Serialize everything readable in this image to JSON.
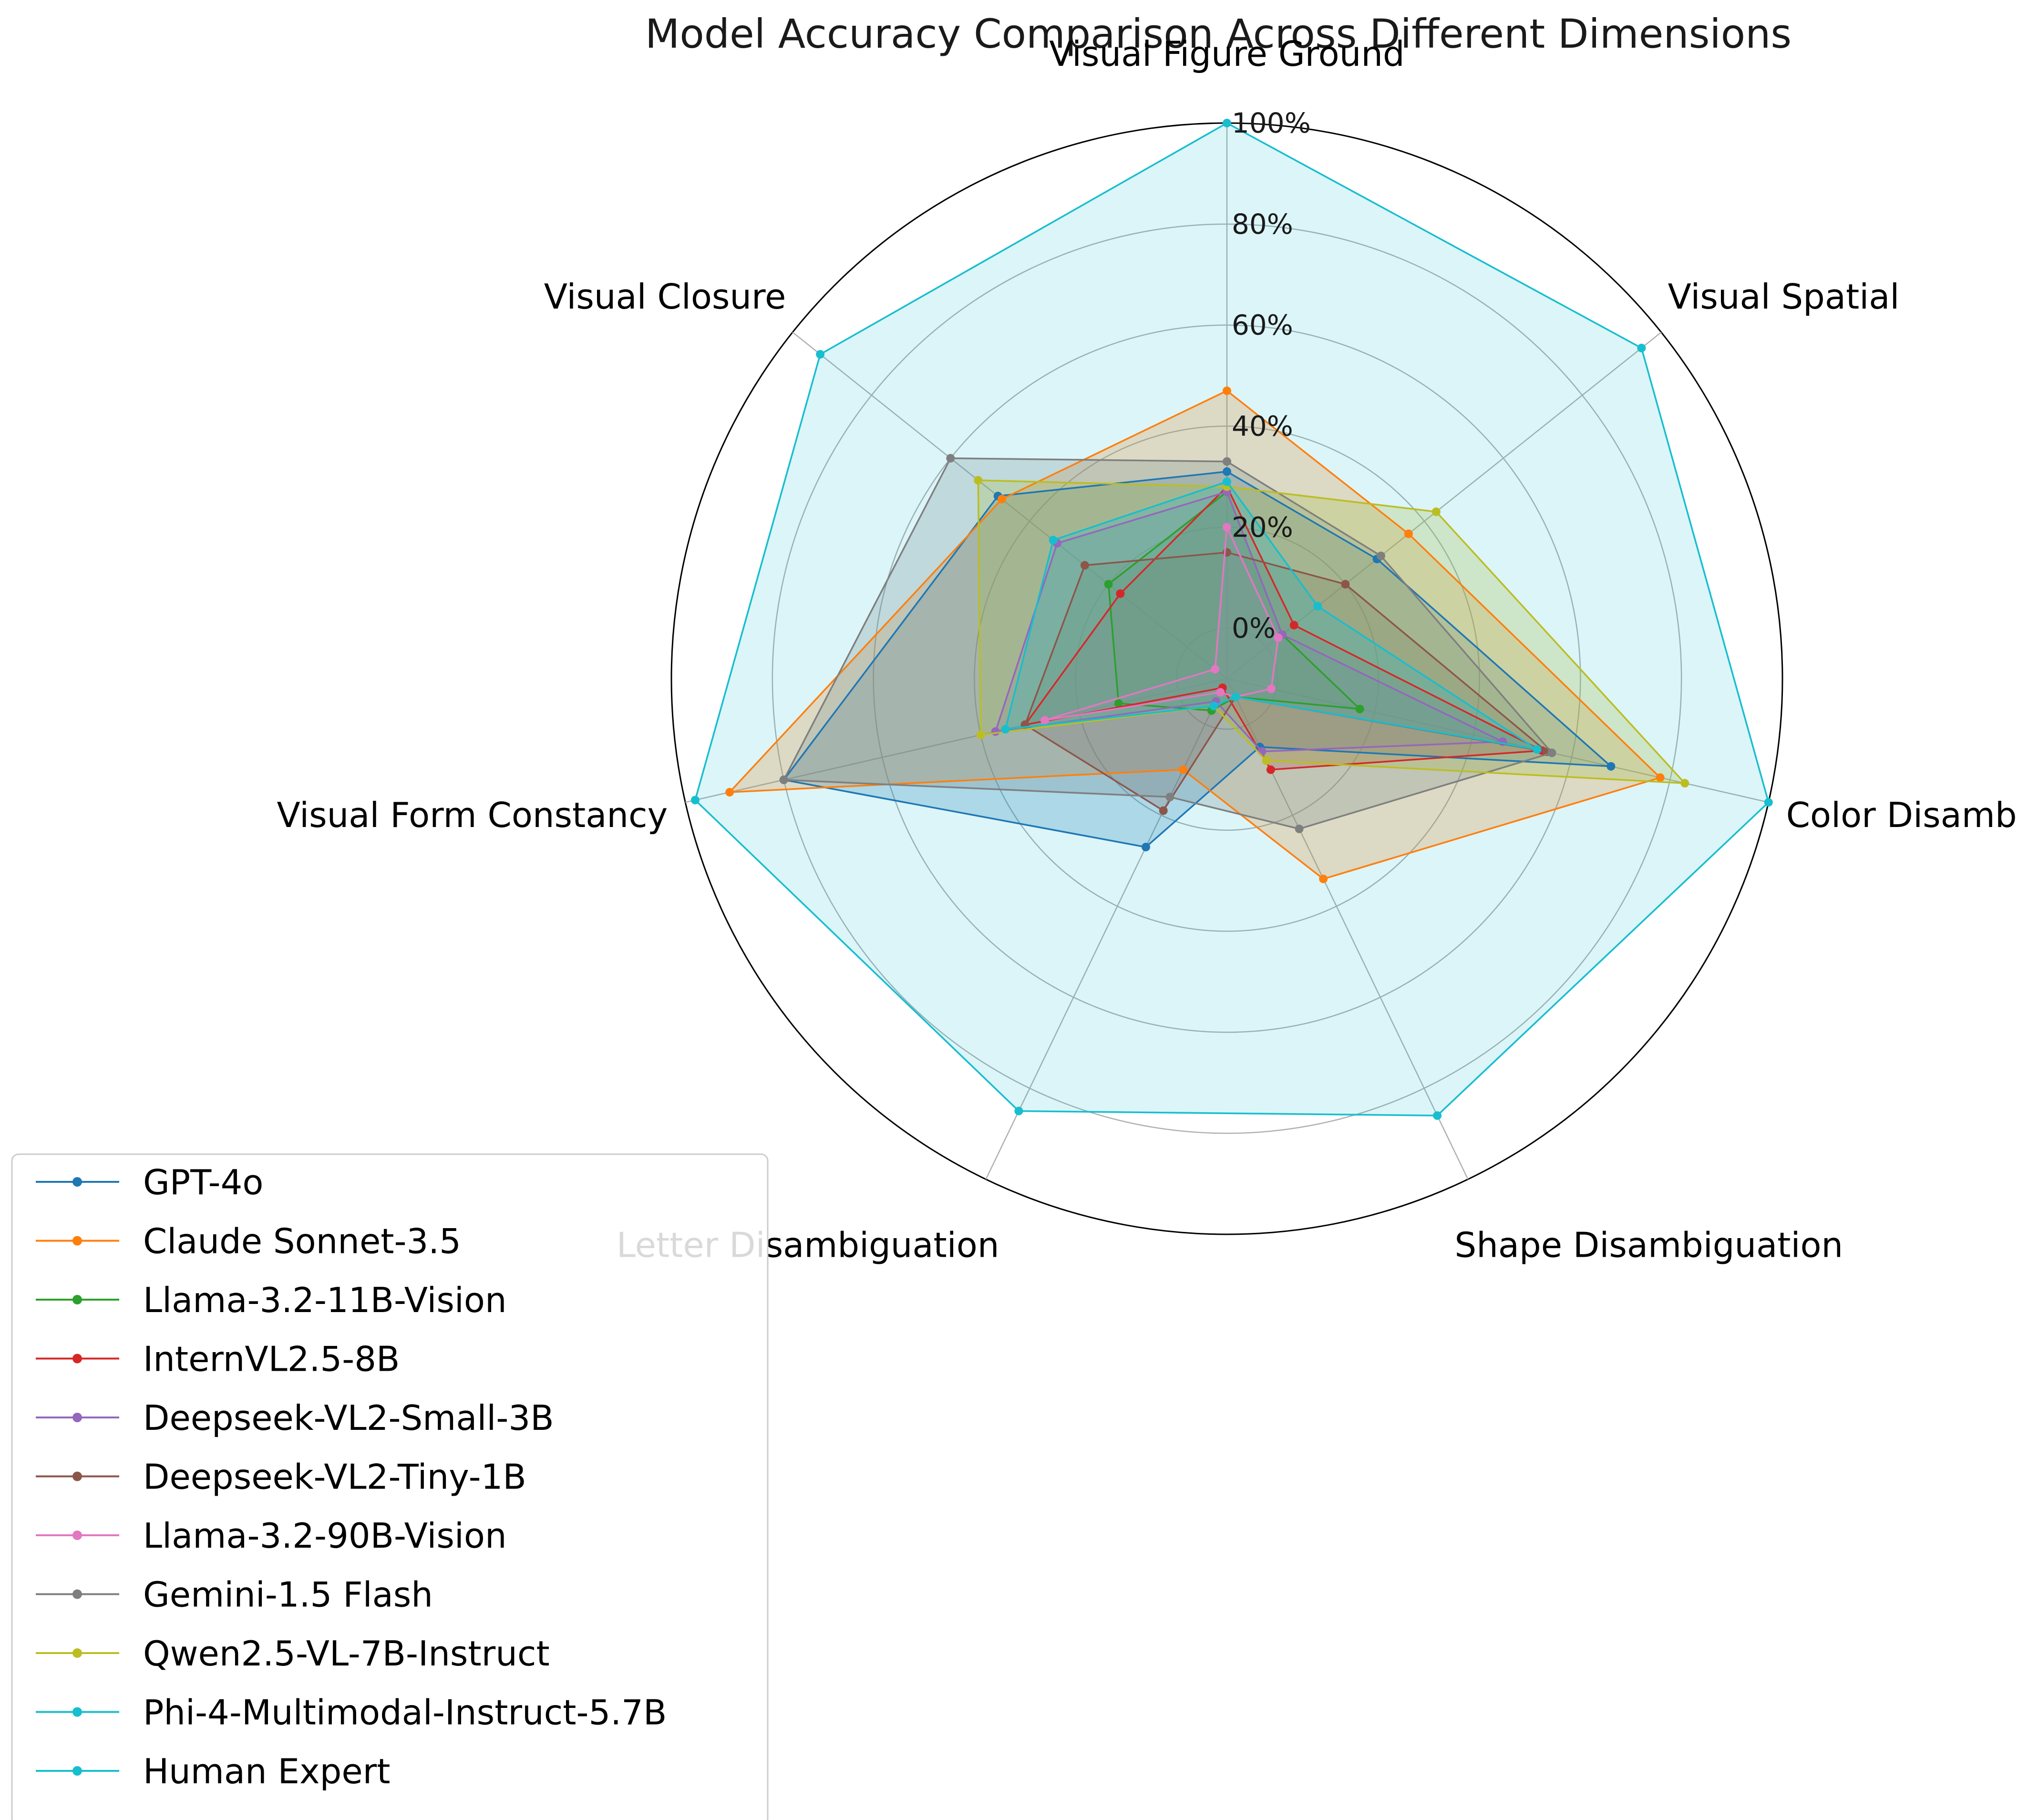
{
  "chart_data": {
    "type": "radar",
    "title": "Model Accuracy Comparison Across Different Dimensions",
    "axes": [
      "Visual Figure Ground",
      "Visual Spatial",
      "Color Disambiguation",
      "Shape Disambiguation",
      "Letter Disambiguation",
      "Visual Form Constancy",
      "Visual Closure"
    ],
    "rlim": [
      -10,
      100
    ],
    "r_ticks": [
      0,
      20,
      40,
      60,
      80,
      100
    ],
    "r_tick_labels": [
      "0%",
      "20%",
      "40%",
      "60%",
      "80%",
      "100%"
    ],
    "grid": true,
    "legend_position": "lower-left",
    "series": [
      {
        "name": "GPT-4o",
        "color": "#1f77b4",
        "values": [
          31,
          28,
          68,
          5,
          27,
          80,
          48
        ]
      },
      {
        "name": "Claude Sonnet-3.5",
        "color": "#ff7f0e",
        "values": [
          47,
          36,
          78,
          34,
          10,
          91,
          47
        ]
      },
      {
        "name": "Llama-3.2-11B-Vision",
        "color": "#2ca02c",
        "values": [
          27,
          4,
          17,
          -6,
          -3,
          12,
          20
        ]
      },
      {
        "name": "InternVL2.5-8B",
        "color": "#d62728",
        "values": [
          28,
          7,
          54,
          10,
          -8,
          31,
          17
        ]
      },
      {
        "name": "Deepseek-VL2-Small-3B",
        "color": "#9467bd",
        "values": [
          27,
          4,
          46,
          6,
          -5,
          37,
          33
        ]
      },
      {
        "name": "Deepseek-VL2-Tiny-1B",
        "color": "#8c564b",
        "values": [
          15,
          20,
          55,
          -6,
          19,
          31,
          26
        ]
      },
      {
        "name": "Llama-3.2-90B-Vision",
        "color": "#e377c2",
        "values": [
          20,
          3,
          -1,
          -6,
          -7,
          27,
          -7
        ]
      },
      {
        "name": "Gemini-1.5 Flash",
        "color": "#7f7f7f",
        "values": [
          33,
          29,
          56,
          23,
          16,
          80,
          60
        ]
      },
      {
        "name": "Qwen2.5-VL-7B-Instruct",
        "color": "#bcbd22",
        "values": [
          28,
          43,
          83,
          8,
          -4,
          40,
          53
        ]
      },
      {
        "name": "Phi-4-Multimodal-Instruct-5.7B",
        "color": "#17becf",
        "values": [
          29,
          13,
          53,
          -6,
          -4,
          35,
          34
        ]
      },
      {
        "name": "Human Expert",
        "color": "#17becf",
        "values": [
          100,
          95,
          100,
          86,
          85,
          98,
          93
        ],
        "filled": true
      }
    ]
  }
}
